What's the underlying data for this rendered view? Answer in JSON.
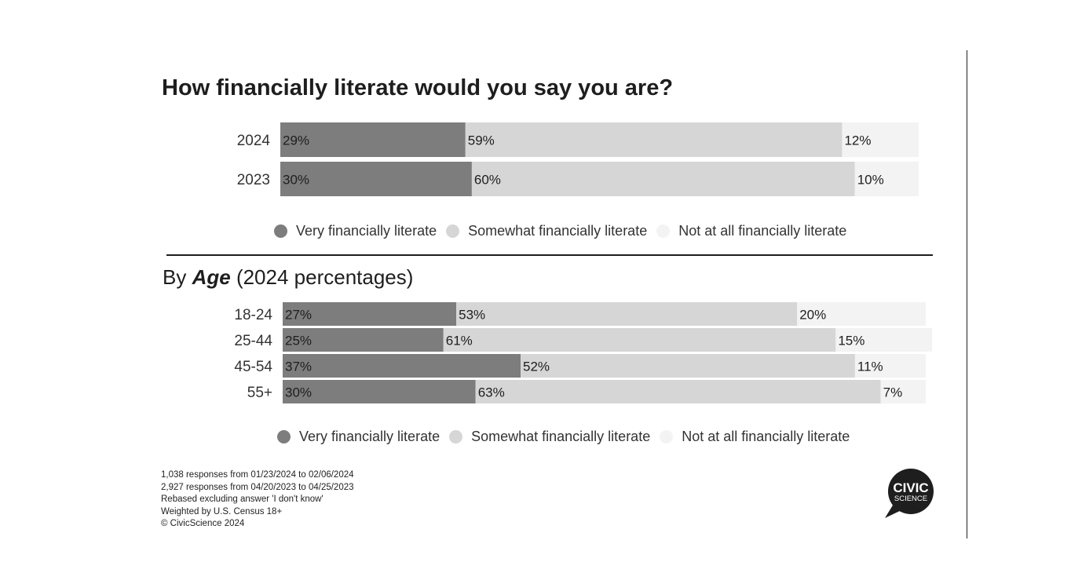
{
  "title": "How financially literate would you say you are?",
  "subtitle": {
    "prefix": "By",
    "emphasis": "Age",
    "suffix": "(2024 percentages)"
  },
  "colors": {
    "very": "#7d7d7d",
    "somewhat": "#d6d6d6",
    "not_at_all": "#f3f3f3"
  },
  "legend": [
    {
      "label": "Very financially literate",
      "color": "#7d7d7d"
    },
    {
      "label": "Somewhat financially literate",
      "color": "#d6d6d6"
    },
    {
      "label": "Not at all financially literate",
      "color": "#f3f3f3"
    }
  ],
  "chart_data": [
    {
      "type": "bar",
      "orientation": "horizontal",
      "stacked": true,
      "title": "How financially literate would you say you are?",
      "categories": [
        "2024",
        "2023"
      ],
      "series": [
        {
          "name": "Very financially literate",
          "values": [
            29,
            30
          ],
          "labels": [
            "29%",
            "30%"
          ]
        },
        {
          "name": "Somewhat financially literate",
          "values": [
            59,
            60
          ],
          "labels": [
            "59%",
            "60%"
          ]
        },
        {
          "name": "Not at all financially literate",
          "values": [
            12,
            10
          ],
          "labels": [
            "12%",
            "10%"
          ]
        }
      ],
      "xlim": [
        0,
        100
      ],
      "legend_position": "bottom"
    },
    {
      "type": "bar",
      "orientation": "horizontal",
      "stacked": true,
      "title": "By Age (2024 percentages)",
      "categories": [
        "18-24",
        "25-44",
        "45-54",
        "55+"
      ],
      "series": [
        {
          "name": "Very financially literate",
          "values": [
            27,
            25,
            37,
            30
          ],
          "labels": [
            "27%",
            "25%",
            "37%",
            "30%"
          ]
        },
        {
          "name": "Somewhat financially literate",
          "values": [
            53,
            61,
            52,
            63
          ],
          "labels": [
            "53%",
            "61%",
            "52%",
            "63%"
          ]
        },
        {
          "name": "Not at all financially literate",
          "values": [
            20,
            15,
            11,
            7
          ],
          "labels": [
            "20%",
            "15%",
            "11%",
            "7%"
          ]
        }
      ],
      "xlim": [
        0,
        100
      ],
      "legend_position": "bottom"
    }
  ],
  "notes": [
    "1,038 responses from 01/23/2024 to 02/06/2024",
    "2,927 responses from 04/20/2023 to 04/25/2023",
    "Rebased excluding answer 'I don't know'",
    "Weighted by U.S. Census 18+",
    "© CivicScience 2024"
  ],
  "logo": {
    "line1": "CIVIC",
    "line2": "SCIENCE"
  }
}
